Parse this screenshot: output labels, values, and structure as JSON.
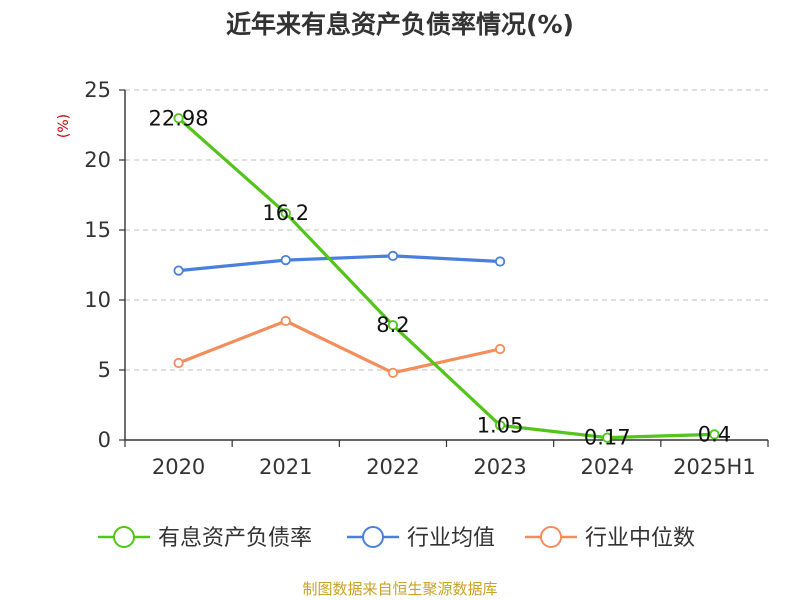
{
  "colors": {
    "debt_ratio": "#52c41a",
    "industry_avg": "#4a7fdb",
    "industry_median": "#f58d5b",
    "grid": "#cccccc",
    "axis": "#333333",
    "unit": "#cc0000",
    "source": "#c9a227"
  },
  "source": "制图数据来自恒生聚源数据库",
  "chart_data": {
    "type": "line",
    "title": "近年来有息资产负债率情况(%)",
    "ylabel": "(%)",
    "xlabel": "",
    "categories": [
      "2020",
      "2021",
      "2022",
      "2023",
      "2024",
      "2025H1"
    ],
    "ylim": [
      0,
      25
    ],
    "yticks": [
      "0",
      "5",
      "10",
      "15",
      "20",
      "25"
    ],
    "grid": true,
    "legend_position": "bottom",
    "series": [
      {
        "name": "有息资产负债率",
        "values": [
          22.98,
          16.2,
          8.2,
          1.05,
          0.17,
          0.4
        ],
        "labels": [
          "22.98",
          "16.2",
          "8.2",
          "1.05",
          "0.17",
          "0.4"
        ]
      },
      {
        "name": "行业均值",
        "values": [
          12.1,
          12.85,
          13.15,
          12.75,
          null,
          null
        ]
      },
      {
        "name": "行业中位数",
        "values": [
          5.5,
          8.5,
          4.8,
          6.5,
          null,
          null
        ]
      }
    ]
  }
}
